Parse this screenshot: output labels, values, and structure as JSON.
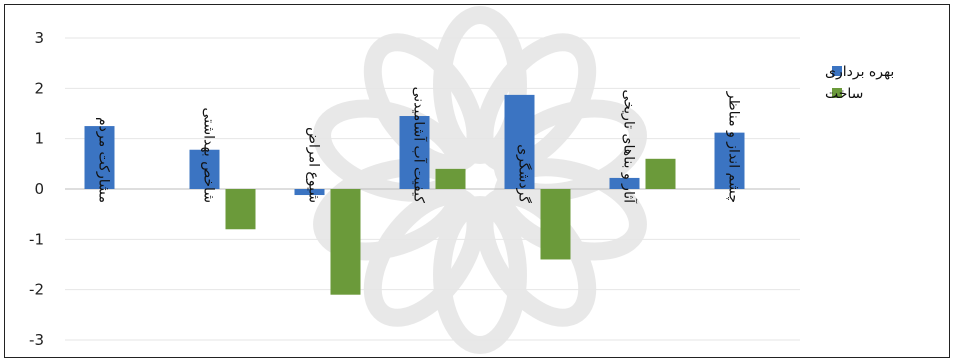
{
  "chart_data": {
    "type": "bar",
    "categories": [
      "مشارکت مردم",
      "شاخص بهداشتی",
      "شیوع امراض",
      "کیفیت آب آشامیدنی",
      "گردشگری",
      "آثار و بناهای تاریخی",
      "چشم انداز و مناظر"
    ],
    "series": [
      {
        "name": "بهره برداری",
        "color": "#3b74c2",
        "values": [
          1.25,
          0.78,
          -0.12,
          1.45,
          1.87,
          0.22,
          1.12
        ]
      },
      {
        "name": "ساخت",
        "color": "#6b9a3a",
        "values": [
          0,
          -0.8,
          -2.1,
          0.4,
          -1.4,
          0.6,
          0
        ]
      }
    ],
    "yticks": [
      "3",
      "2",
      "1",
      "0",
      "-1",
      "-2",
      "-3"
    ],
    "ylim": [
      -3,
      3
    ],
    "grid": true,
    "legend": "right"
  }
}
